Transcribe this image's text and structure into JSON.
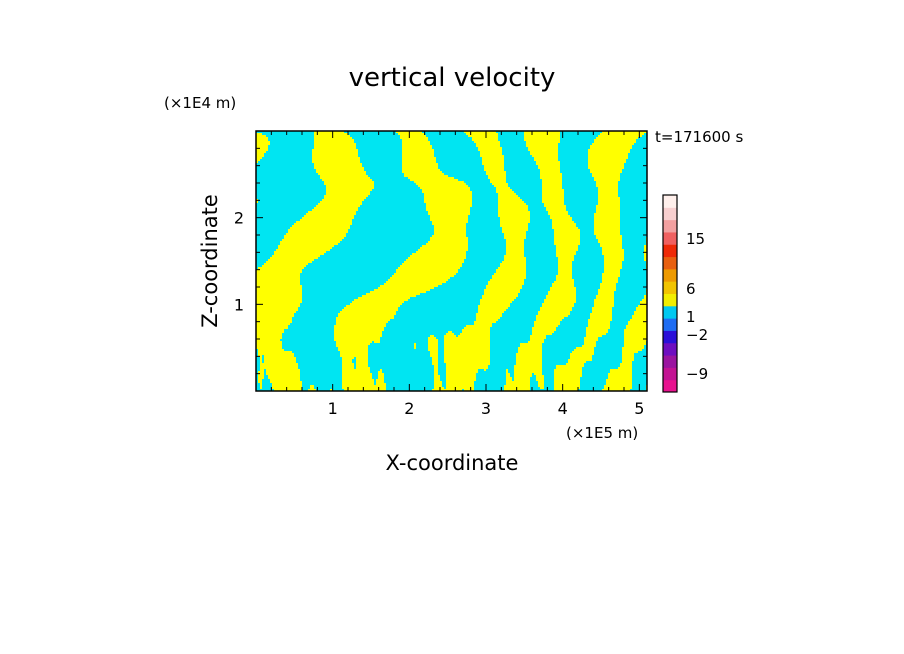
{
  "chart_data": {
    "type": "heatmap",
    "title": "vertical velocity",
    "xlabel": "X-coordinate",
    "ylabel": "Z-coordinate",
    "x_unit": "(×1E5 m)",
    "y_unit": "(×1E4 m)",
    "time_label": "t=171600 s",
    "xlim": [
      0,
      5.1
    ],
    "ylim": [
      0,
      3.0
    ],
    "x_ticks": [
      1,
      2,
      3,
      4,
      5
    ],
    "y_ticks": [
      1,
      2
    ],
    "field_colors": {
      "upward": "#ffff00",
      "downward": "#00e5f2"
    },
    "colorbar": {
      "tick_labels": [
        "15",
        "6",
        "1",
        "−2",
        "−9"
      ],
      "levels": [
        {
          "color": "#e8138f"
        },
        {
          "color": "#c21393"
        },
        {
          "color": "#9a14a0"
        },
        {
          "color": "#6e0ec0"
        },
        {
          "color": "#2a10d8"
        },
        {
          "color": "#1e6cf2"
        },
        {
          "color": "#00c8f0"
        },
        {
          "color": "#f2ee00"
        },
        {
          "color": "#f2c400"
        },
        {
          "color": "#ee9a00"
        },
        {
          "color": "#e86010"
        },
        {
          "color": "#ee2a08"
        },
        {
          "color": "#f06060"
        },
        {
          "color": "#f2a0a0"
        },
        {
          "color": "#f8d0d0"
        },
        {
          "color": "#fff0ec"
        }
      ]
    }
  }
}
